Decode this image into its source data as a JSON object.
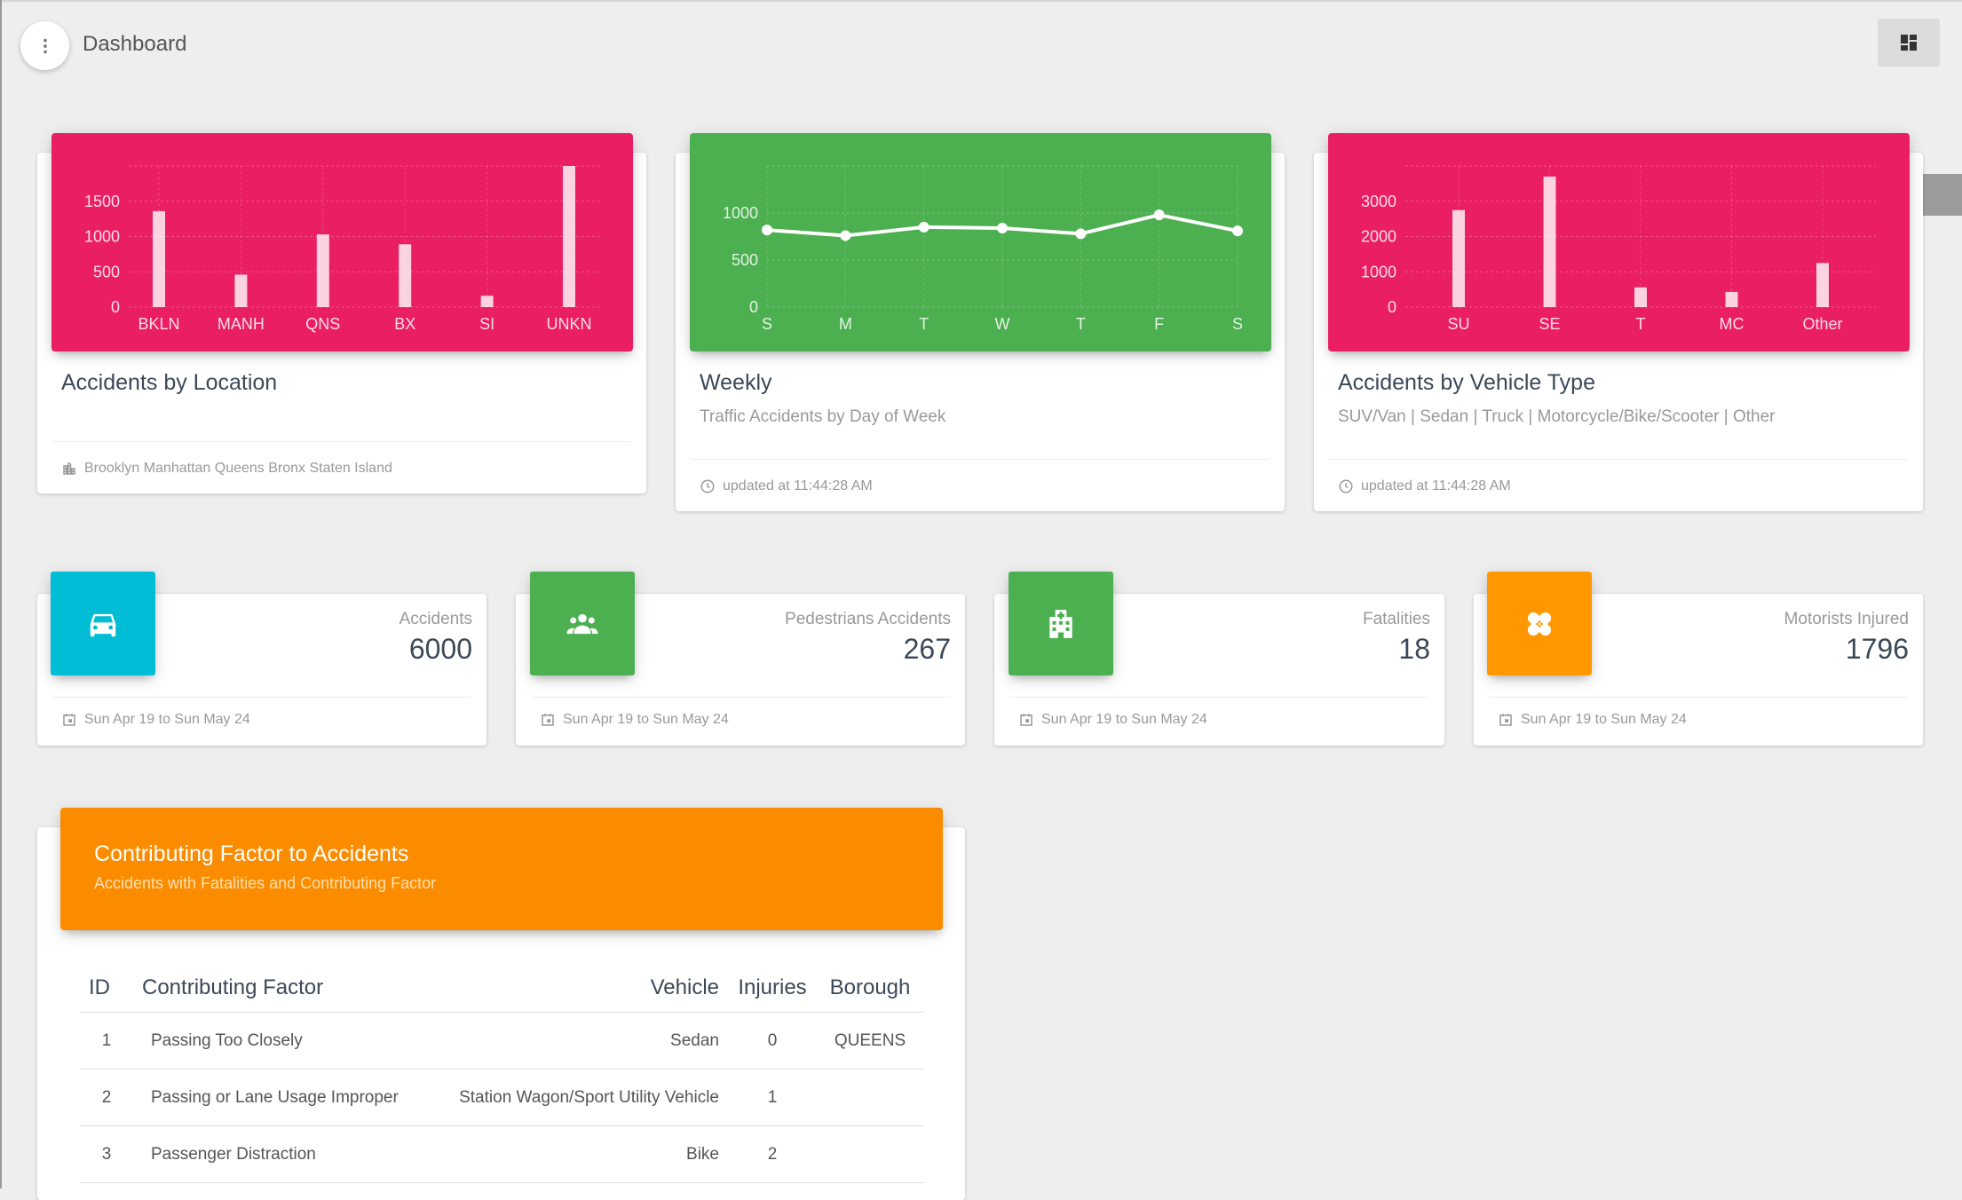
{
  "header": {
    "title": "Dashboard",
    "menu_icon": "more-vert-icon",
    "dashboard_icon": "dashboard-icon"
  },
  "colors": {
    "pink": "#e91e63",
    "green": "#4caf50",
    "cyan": "#00bcd4",
    "orange": "#ff9800",
    "table_orange": "#fb8c00",
    "background": "#eeeeee"
  },
  "cards": {
    "location": {
      "title": "Accidents by Location",
      "footer": "Brooklyn Manhattan Queens Bronx Staten Island",
      "footer_icon": "city-icon"
    },
    "weekly": {
      "title": "Weekly",
      "category": "Traffic Accidents by Day of Week",
      "footer": "updated at 11:44:28 AM",
      "footer_icon": "clock-icon"
    },
    "vehicle": {
      "title": "Accidents by Vehicle Type",
      "category": "SUV/Van | Sedan | Truck | Motorcycle/Bike/Scooter | Other",
      "footer": "updated at 11:44:28 AM",
      "footer_icon": "clock-icon"
    }
  },
  "chart_data": [
    {
      "type": "bar",
      "categories": [
        "BKLN",
        "MANH",
        "QNS",
        "BX",
        "SI",
        "UNKN"
      ],
      "values": [
        1360,
        460,
        1030,
        890,
        160,
        2000
      ],
      "ylim": [
        0,
        2000
      ],
      "yticks": [
        0,
        500,
        1000,
        1500
      ],
      "grid": true
    },
    {
      "type": "line",
      "categories": [
        "S",
        "M",
        "T",
        "W",
        "T",
        "F",
        "S"
      ],
      "values": [
        820,
        760,
        850,
        840,
        780,
        980,
        810
      ],
      "ylim": [
        0,
        1500
      ],
      "yticks": [
        0,
        500,
        1000
      ],
      "grid": true
    },
    {
      "type": "bar",
      "categories": [
        "SU",
        "SE",
        "T",
        "MC",
        "Other"
      ],
      "values": [
        2750,
        3700,
        560,
        430,
        1250
      ],
      "ylim": [
        0,
        4000
      ],
      "yticks": [
        0,
        1000,
        2000,
        3000
      ],
      "grid": true
    }
  ],
  "stats": [
    {
      "label": "Accidents",
      "value": "6000",
      "footer": "Sun Apr 19 to Sun May 24",
      "icon": "car-icon",
      "color": "#00bcd4"
    },
    {
      "label": "Pedestrians Accidents",
      "value": "267",
      "footer": "Sun Apr 19 to Sun May 24",
      "icon": "people-icon",
      "color": "#4caf50"
    },
    {
      "label": "Fatalities",
      "value": "18",
      "footer": "Sun Apr 19 to Sun May 24",
      "icon": "hospital-icon",
      "color": "#4caf50"
    },
    {
      "label": "Motorists Injured",
      "value": "1796",
      "footer": "Sun Apr 19 to Sun May 24",
      "icon": "bandage-icon",
      "color": "#ff9800"
    }
  ],
  "table": {
    "title": "Contributing Factor to Accidents",
    "subtitle": "Accidents with Fatalities and Contributing Factor",
    "columns": [
      "ID",
      "Contributing Factor",
      "Vehicle",
      "Injuries",
      "Borough"
    ],
    "rows": [
      [
        "1",
        "Passing Too Closely",
        "Sedan",
        "0",
        "QUEENS"
      ],
      [
        "2",
        "Passing or Lane Usage Improper",
        "Station Wagon/Sport Utility Vehicle",
        "1",
        ""
      ],
      [
        "3",
        "Passenger Distraction",
        "Bike",
        "2",
        ""
      ]
    ]
  }
}
